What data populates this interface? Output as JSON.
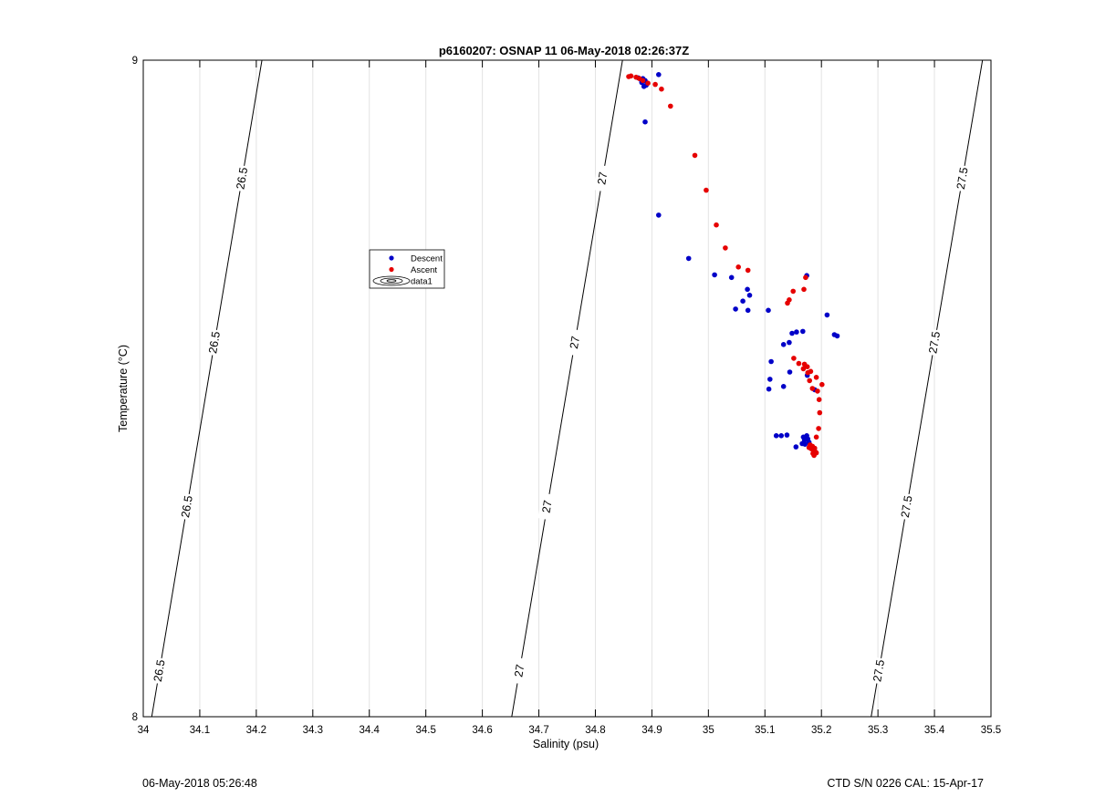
{
  "chart_data": {
    "type": "scatter",
    "title": "p6160207: OSNAP 11 06-May-2018 02:26:37Z",
    "xlabel": "Salinity (psu)",
    "ylabel": "Temperature (°C)",
    "xlim": [
      34,
      35.5
    ],
    "ylim": [
      8,
      9
    ],
    "xticks": [
      "34",
      "34.1",
      "34.2",
      "34.3",
      "34.4",
      "34.5",
      "34.6",
      "34.7",
      "34.8",
      "34.9",
      "35",
      "35.1",
      "35.2",
      "35.3",
      "35.4",
      "35.5"
    ],
    "yticks": [
      "8",
      "9"
    ],
    "grid": "vertical",
    "legend_position": "upper-left-center",
    "legend": [
      "Descent",
      "Ascent",
      "data1"
    ],
    "colors": {
      "Descent": "#0000c8",
      "Ascent": "#e60000",
      "contour": "#000000",
      "grid": "#e3e3e3"
    },
    "contours": [
      {
        "label": "26.5",
        "points": [
          [
            34.015,
            8.0
          ],
          [
            34.21,
            9.0
          ]
        ],
        "label_y": [
          8.07,
          8.32,
          8.57,
          8.82
        ]
      },
      {
        "label": "27",
        "points": [
          [
            34.652,
            8.0
          ],
          [
            34.848,
            9.0
          ]
        ],
        "label_y": [
          8.07,
          8.32,
          8.57,
          8.82
        ]
      },
      {
        "label": "27.5",
        "points": [
          [
            35.288,
            8.0
          ],
          [
            35.485,
            9.0
          ]
        ],
        "label_y": [
          8.07,
          8.32,
          8.57,
          8.82
        ]
      }
    ],
    "series": [
      {
        "name": "Descent",
        "marker": "dot",
        "points": [
          [
            34.876,
            8.973
          ],
          [
            34.88,
            8.971
          ],
          [
            34.884,
            8.972
          ],
          [
            34.888,
            8.969
          ],
          [
            34.882,
            8.966
          ],
          [
            34.89,
            8.962
          ],
          [
            34.886,
            8.96
          ],
          [
            34.912,
            8.978
          ],
          [
            34.888,
            8.906
          ],
          [
            34.912,
            8.764
          ],
          [
            34.965,
            8.698
          ],
          [
            35.011,
            8.673
          ],
          [
            35.041,
            8.669
          ],
          [
            35.069,
            8.651
          ],
          [
            35.073,
            8.642
          ],
          [
            35.061,
            8.633
          ],
          [
            35.048,
            8.621
          ],
          [
            35.07,
            8.619
          ],
          [
            35.106,
            8.619
          ],
          [
            35.174,
            8.672
          ],
          [
            35.21,
            8.612
          ],
          [
            35.223,
            8.582
          ],
          [
            35.228,
            8.58
          ],
          [
            35.167,
            8.587
          ],
          [
            35.156,
            8.586
          ],
          [
            35.148,
            8.584
          ],
          [
            35.143,
            8.57
          ],
          [
            35.133,
            8.567
          ],
          [
            35.111,
            8.541
          ],
          [
            35.144,
            8.525
          ],
          [
            35.109,
            8.514
          ],
          [
            35.107,
            8.499
          ],
          [
            35.133,
            8.503
          ],
          [
            35.175,
            8.52
          ],
          [
            35.188,
            8.498
          ],
          [
            35.12,
            8.428
          ],
          [
            35.129,
            8.428
          ],
          [
            35.139,
            8.429
          ],
          [
            35.155,
            8.411
          ],
          [
            35.166,
            8.416
          ],
          [
            35.17,
            8.421
          ],
          [
            35.172,
            8.425
          ],
          [
            35.174,
            8.428
          ],
          [
            35.176,
            8.423
          ],
          [
            35.178,
            8.418
          ],
          [
            35.168,
            8.426
          ],
          [
            35.171,
            8.415
          ]
        ]
      },
      {
        "name": "Ascent",
        "marker": "dot",
        "points": [
          [
            34.859,
            8.975
          ],
          [
            34.863,
            8.976
          ],
          [
            34.872,
            8.974
          ],
          [
            34.878,
            8.972
          ],
          [
            34.884,
            8.969
          ],
          [
            34.893,
            8.965
          ],
          [
            34.906,
            8.963
          ],
          [
            34.917,
            8.956
          ],
          [
            34.933,
            8.93
          ],
          [
            34.976,
            8.855
          ],
          [
            34.996,
            8.802
          ],
          [
            35.014,
            8.749
          ],
          [
            35.03,
            8.714
          ],
          [
            35.053,
            8.685
          ],
          [
            35.07,
            8.68
          ],
          [
            35.172,
            8.669
          ],
          [
            35.15,
            8.648
          ],
          [
            35.169,
            8.651
          ],
          [
            35.143,
            8.635
          ],
          [
            35.14,
            8.63
          ],
          [
            35.151,
            8.546
          ],
          [
            35.16,
            8.538
          ],
          [
            35.168,
            8.53
          ],
          [
            35.176,
            8.524
          ],
          [
            35.181,
            8.526
          ],
          [
            35.191,
            8.517
          ],
          [
            35.201,
            8.506
          ],
          [
            35.179,
            8.512
          ],
          [
            35.184,
            8.5
          ],
          [
            35.193,
            8.496
          ],
          [
            35.196,
            8.483
          ],
          [
            35.197,
            8.463
          ],
          [
            35.195,
            8.439
          ],
          [
            35.191,
            8.426
          ],
          [
            35.17,
            8.537
          ],
          [
            35.175,
            8.533
          ],
          [
            35.178,
            8.41
          ],
          [
            35.182,
            8.408
          ],
          [
            35.186,
            8.405
          ],
          [
            35.19,
            8.403
          ],
          [
            35.184,
            8.412
          ],
          [
            35.188,
            8.409
          ],
          [
            35.18,
            8.414
          ],
          [
            35.185,
            8.401
          ],
          [
            35.187,
            8.398
          ],
          [
            35.191,
            8.402
          ]
        ]
      }
    ]
  },
  "footer": {
    "timestamp": "06-May-2018 05:26:48",
    "instrument": "CTD S/N 0226  CAL: 15-Apr-17"
  }
}
